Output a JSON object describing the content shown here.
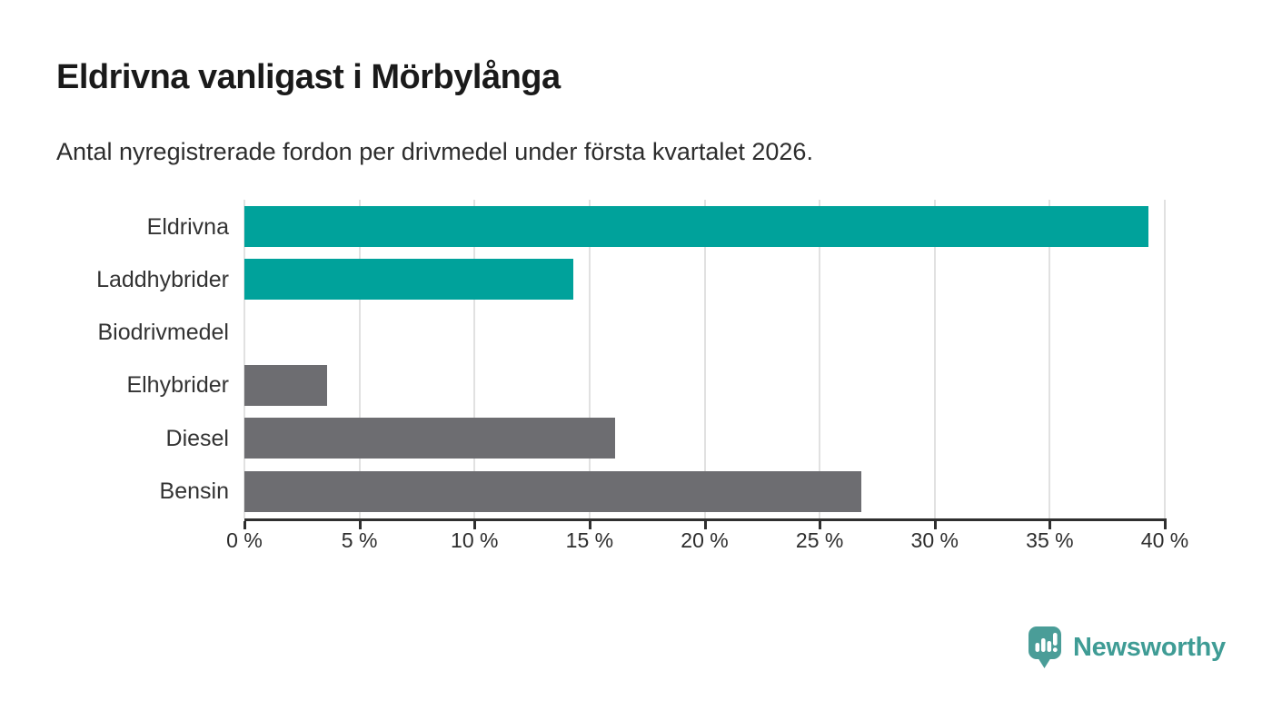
{
  "header": {
    "title": "Eldrivna vanligast i Mörbylånga",
    "subtitle": "Antal nyregistrerade fordon per drivmedel under första kvartalet 2026."
  },
  "chart_data": {
    "type": "bar",
    "orientation": "horizontal",
    "title": "Eldrivna vanligast i Mörbylånga",
    "subtitle": "Antal nyregistrerade fordon per drivmedel under första kvartalet 2026.",
    "categories": [
      "Eldrivna",
      "Laddhybrider",
      "Biodrivmedel",
      "Elhybrider",
      "Diesel",
      "Bensin"
    ],
    "values": [
      39.3,
      14.3,
      0,
      3.6,
      16.1,
      26.8
    ],
    "unit": "%",
    "bar_colors": [
      "#00a29b",
      "#00a29b",
      "#6d6d71",
      "#6d6d71",
      "#6d6d71",
      "#6d6d71"
    ],
    "accent_color": "#00a29b",
    "neutral_color": "#6d6d71",
    "xlim": [
      0,
      40
    ],
    "x_tick_values": [
      0,
      5,
      10,
      15,
      20,
      25,
      30,
      35,
      40
    ],
    "x_tick_labels": [
      "0 %",
      "5 %",
      "10 %",
      "15 %",
      "20 %",
      "25 %",
      "30 %",
      "35 %",
      "40 %"
    ],
    "grid": "vertical",
    "gridline_color": "#e1e1e1",
    "axis_color": "#2f2f2f",
    "legend": "none"
  },
  "branding": {
    "logo_text": "Newsworthy",
    "logo_color": "#3f9c95",
    "logo_icon": "newsworthy-speech-bubble-bar-chart-icon"
  }
}
